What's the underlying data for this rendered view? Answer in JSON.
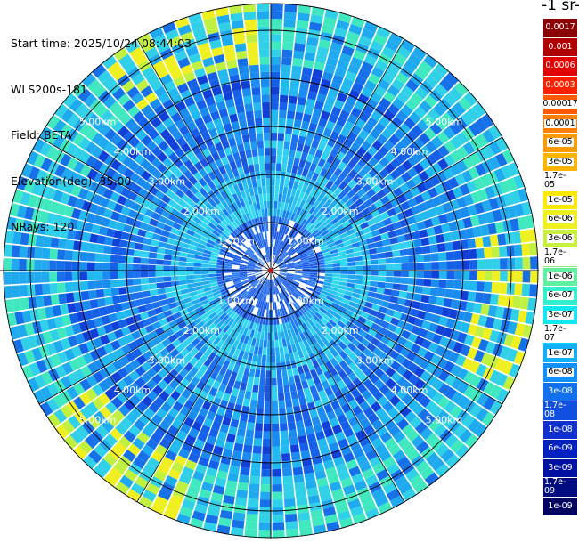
{
  "info": {
    "start_time": "Start time: 2025/10/24 08:44:03",
    "device": "WLS200s-181",
    "field": "Field: BETA",
    "elevation": "Elevation(deg): 35.00",
    "nrays": "NRays: 120"
  },
  "chart_data": {
    "type": "heatmap",
    "subtype": "polar-ppi",
    "field": "BETA",
    "n_rays": 120,
    "range_rings": [
      "1.00km",
      "2.00km",
      "3.00km",
      "4.00km",
      "5.00km"
    ],
    "range_ring_values_km": [
      1,
      2,
      3,
      4,
      5
    ],
    "legend_title": "-1 sr-",
    "colorbar": {
      "labels": [
        "0.0017",
        "0.001",
        "0.0006",
        "0.0003",
        "0.00017",
        "0.0001",
        "6e-05",
        "3e-05",
        "1.7e-05",
        "1e-05",
        "6e-06",
        "3e-06",
        "1.7e-06",
        "1e-06",
        "6e-07",
        "3e-07",
        "1.7e-07",
        "1e-07",
        "6e-08",
        "3e-08",
        "1.7e-08",
        "1e-08",
        "6e-09",
        "3e-09",
        "1.7e-09",
        "1e-09"
      ],
      "colors": [
        "#8b0000",
        "#b00000",
        "#e00000",
        "#ff2000",
        "#ff5a00",
        "#ff7f00",
        "#ff9a00",
        "#ffb400",
        "#ffd000",
        "#ffe800",
        "#f0f020",
        "#c8f040",
        "#90f070",
        "#60f0a0",
        "#30f0d0",
        "#10e8f0",
        "#10d0ff",
        "#10b0ff",
        "#1090ff",
        "#1070f0",
        "#1050e0",
        "#1030d0",
        "#0020c0",
        "#0010a0",
        "#000c80",
        "#000060"
      ],
      "label_colors": [
        "#ffffff",
        "#ffffff",
        "#ffffff",
        "#ffffff",
        "#000000",
        "#000000",
        "#000000",
        "#000000",
        "#000000",
        "#000000",
        "#000000",
        "#000000",
        "#000000",
        "#000000",
        "#000000",
        "#000000",
        "#000000",
        "#000000",
        "#000000",
        "#ffffff",
        "#ffffff",
        "#ffffff",
        "#ffffff",
        "#ffffff",
        "#ffffff",
        "#ffffff"
      ]
    }
  }
}
